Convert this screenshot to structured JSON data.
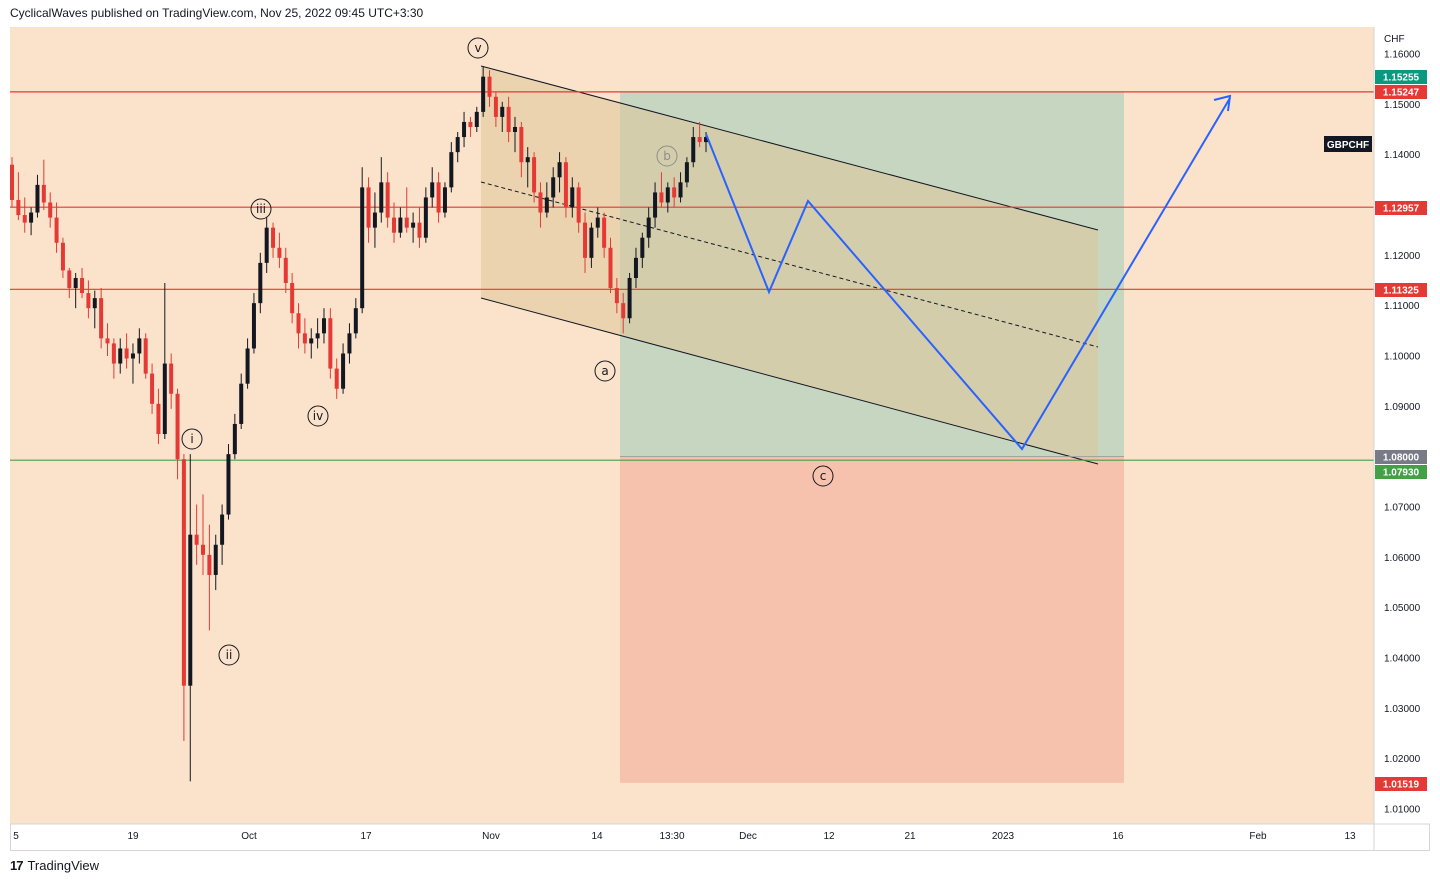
{
  "header": {
    "attribution": "CyclicalWaves published on TradingView.com, Nov 25, 2022 09:45 UTC+3:30"
  },
  "footer": {
    "logo_mark": "17",
    "brand": "TradingView"
  },
  "colors": {
    "background": "#fbe3cb",
    "resistance_line": "#e53935",
    "target_line": "#43a047",
    "projection": "#2962ff",
    "profit_zone": "#c6d6c1",
    "loss_zone": "#f7c2ad",
    "channel_fill": "#e0c79a"
  },
  "chart_data": {
    "type": "candlestick",
    "symbol": "GBPCHF",
    "currency": "CHF",
    "ylim": [
      1.005,
      1.1655
    ],
    "y_ticks": [
      "1.16000",
      "1.15000",
      "1.14000",
      "1.13000",
      "1.12000",
      "1.11000",
      "1.10000",
      "1.09000",
      "1.08000",
      "1.07000",
      "1.06000",
      "1.05000",
      "1.04000",
      "1.03000",
      "1.02000",
      "1.01000"
    ],
    "x_ticks": [
      "5",
      "19",
      "Oct",
      "17",
      "Nov",
      "14",
      "13:30",
      "Dec",
      "12",
      "21",
      "2023",
      "16",
      "Feb",
      "13"
    ],
    "price_labels": [
      {
        "value": "1.15255",
        "color": "#089981"
      },
      {
        "value": "1.15247",
        "color": "#e53935"
      },
      {
        "value": "1.12957",
        "color": "#e53935"
      },
      {
        "value": "1.11325",
        "color": "#e53935"
      },
      {
        "value": "1.08000",
        "color": "#787b86"
      },
      {
        "value": "1.07930",
        "color": "#43a047"
      },
      {
        "value": "1.01519",
        "color": "#e53935"
      }
    ],
    "horizontal_lines": [
      {
        "price": 1.15247,
        "color": "#e53935"
      },
      {
        "price": 1.12957,
        "color": "#e53935"
      },
      {
        "price": 1.11325,
        "color": "#e53935"
      },
      {
        "price": 1.0793,
        "color": "#43a047"
      }
    ],
    "wave_labels": [
      "i",
      "ii",
      "iii",
      "iv",
      "v",
      "a",
      "b",
      "c"
    ],
    "position": {
      "entry": 1.08,
      "target": 1.15247,
      "stop": 1.01519
    },
    "candles": [
      [
        1.138,
        1.1395,
        1.1295,
        1.131
      ],
      [
        1.131,
        1.1365,
        1.127,
        1.128
      ],
      [
        1.128,
        1.1315,
        1.1245,
        1.1265
      ],
      [
        1.1265,
        1.1295,
        1.124,
        1.1285
      ],
      [
        1.1285,
        1.136,
        1.1275,
        1.134
      ],
      [
        1.134,
        1.139,
        1.129,
        1.1305
      ],
      [
        1.1305,
        1.1325,
        1.1255,
        1.1275
      ],
      [
        1.1275,
        1.1305,
        1.1205,
        1.1225
      ],
      [
        1.1225,
        1.1235,
        1.1155,
        1.117
      ],
      [
        1.117,
        1.1175,
        1.1115,
        1.1135
      ],
      [
        1.1135,
        1.1165,
        1.1095,
        1.1155
      ],
      [
        1.1155,
        1.1175,
        1.1115,
        1.1125
      ],
      [
        1.1125,
        1.115,
        1.1075,
        1.1095
      ],
      [
        1.1095,
        1.113,
        1.1055,
        1.1115
      ],
      [
        1.1115,
        1.1135,
        1.1015,
        1.1035
      ],
      [
        1.1035,
        1.1065,
        1.1,
        1.1025
      ],
      [
        1.1025,
        1.1035,
        1.0955,
        1.0985
      ],
      [
        1.0985,
        1.1035,
        1.0965,
        1.1015
      ],
      [
        1.1015,
        1.1045,
        1.0975,
        1.0995
      ],
      [
        1.0995,
        1.1025,
        1.0945,
        1.1005
      ],
      [
        1.1005,
        1.1055,
        1.0985,
        1.1035
      ],
      [
        1.1035,
        1.1045,
        1.0955,
        1.0965
      ],
      [
        1.0965,
        1.0985,
        1.0885,
        1.0905
      ],
      [
        1.0905,
        1.0935,
        1.0825,
        1.0845
      ],
      [
        1.0845,
        1.1145,
        1.0835,
        1.0985
      ],
      [
        1.0985,
        1.1005,
        1.0895,
        1.0925
      ],
      [
        1.0925,
        1.0935,
        1.0755,
        1.0795
      ],
      [
        1.0795,
        1.0805,
        1.0235,
        1.0345
      ],
      [
        1.0345,
        1.0805,
        1.0155,
        1.0645
      ],
      [
        1.0645,
        1.0705,
        1.0585,
        1.0625
      ],
      [
        1.0625,
        1.0725,
        1.0565,
        1.0605
      ],
      [
        1.0605,
        1.0665,
        1.0455,
        1.0565
      ],
      [
        1.0565,
        1.0645,
        1.0535,
        1.0625
      ],
      [
        1.0625,
        1.0705,
        1.0585,
        1.0685
      ],
      [
        1.0685,
        1.0825,
        1.0675,
        1.0805
      ],
      [
        1.0805,
        1.0885,
        1.0795,
        1.0865
      ],
      [
        1.0865,
        1.0965,
        1.0855,
        1.0945
      ],
      [
        1.0945,
        1.1035,
        1.0935,
        1.1015
      ],
      [
        1.1015,
        1.1125,
        1.1005,
        1.1105
      ],
      [
        1.1105,
        1.1205,
        1.1085,
        1.1185
      ],
      [
        1.1185,
        1.1275,
        1.1165,
        1.1255
      ],
      [
        1.1255,
        1.1265,
        1.1195,
        1.1215
      ],
      [
        1.1215,
        1.1245,
        1.1175,
        1.1195
      ],
      [
        1.1195,
        1.1215,
        1.1125,
        1.1145
      ],
      [
        1.1145,
        1.1165,
        1.1065,
        1.1085
      ],
      [
        1.1085,
        1.1105,
        1.1015,
        1.1045
      ],
      [
        1.1045,
        1.1075,
        1.1005,
        1.1025
      ],
      [
        1.1025,
        1.1055,
        1.0995,
        1.1035
      ],
      [
        1.1035,
        1.1075,
        1.1015,
        1.1045
      ],
      [
        1.1045,
        1.1095,
        1.1025,
        1.1075
      ],
      [
        1.1075,
        1.1095,
        1.0955,
        1.0975
      ],
      [
        1.0975,
        1.0995,
        1.0915,
        1.0935
      ],
      [
        1.0935,
        1.1025,
        1.0925,
        1.1005
      ],
      [
        1.1005,
        1.1065,
        1.0985,
        1.1045
      ],
      [
        1.1045,
        1.1115,
        1.1035,
        1.1095
      ],
      [
        1.1095,
        1.1375,
        1.1085,
        1.1335
      ],
      [
        1.1335,
        1.1355,
        1.1225,
        1.1255
      ],
      [
        1.1255,
        1.1325,
        1.1215,
        1.1285
      ],
      [
        1.1285,
        1.1395,
        1.1265,
        1.1345
      ],
      [
        1.1345,
        1.1365,
        1.1255,
        1.1275
      ],
      [
        1.1275,
        1.1305,
        1.1225,
        1.1245
      ],
      [
        1.1245,
        1.1295,
        1.1235,
        1.1275
      ],
      [
        1.1275,
        1.1335,
        1.1245,
        1.1255
      ],
      [
        1.1255,
        1.1285,
        1.1225,
        1.1265
      ],
      [
        1.1265,
        1.1295,
        1.1215,
        1.1235
      ],
      [
        1.1235,
        1.1335,
        1.1225,
        1.1315
      ],
      [
        1.1315,
        1.1375,
        1.1295,
        1.1345
      ],
      [
        1.1345,
        1.1365,
        1.1265,
        1.1285
      ],
      [
        1.1285,
        1.1345,
        1.1275,
        1.1335
      ],
      [
        1.1335,
        1.1425,
        1.1325,
        1.1405
      ],
      [
        1.1405,
        1.1445,
        1.1385,
        1.1435
      ],
      [
        1.1435,
        1.1485,
        1.1415,
        1.1465
      ],
      [
        1.1465,
        1.1475,
        1.1435,
        1.1455
      ],
      [
        1.1455,
        1.1495,
        1.1445,
        1.1485
      ],
      [
        1.1485,
        1.1575,
        1.1475,
        1.1555
      ],
      [
        1.1555,
        1.1568,
        1.1495,
        1.1515
      ],
      [
        1.1515,
        1.1525,
        1.1455,
        1.1475
      ],
      [
        1.1475,
        1.1505,
        1.1445,
        1.1495
      ],
      [
        1.1495,
        1.1515,
        1.1425,
        1.1445
      ],
      [
        1.1445,
        1.1475,
        1.1405,
        1.1455
      ],
      [
        1.1455,
        1.1465,
        1.1355,
        1.1385
      ],
      [
        1.1385,
        1.1415,
        1.1335,
        1.1395
      ],
      [
        1.1395,
        1.1405,
        1.1305,
        1.1325
      ],
      [
        1.1325,
        1.1345,
        1.1255,
        1.1285
      ],
      [
        1.1285,
        1.1345,
        1.1275,
        1.1315
      ],
      [
        1.1315,
        1.1375,
        1.1295,
        1.1355
      ],
      [
        1.1355,
        1.1405,
        1.1325,
        1.1385
      ],
      [
        1.1385,
        1.1395,
        1.1275,
        1.1295
      ],
      [
        1.1295,
        1.1355,
        1.1275,
        1.1335
      ],
      [
        1.1335,
        1.1345,
        1.1245,
        1.1265
      ],
      [
        1.1265,
        1.1285,
        1.1165,
        1.1195
      ],
      [
        1.1195,
        1.1265,
        1.1175,
        1.1255
      ],
      [
        1.1255,
        1.1295,
        1.1235,
        1.1275
      ],
      [
        1.1275,
        1.1285,
        1.1195,
        1.1215
      ],
      [
        1.1215,
        1.1235,
        1.1125,
        1.1135
      ],
      [
        1.1135,
        1.1155,
        1.1085,
        1.1105
      ],
      [
        1.1105,
        1.1125,
        1.1045,
        1.1075
      ],
      [
        1.1075,
        1.1165,
        1.1065,
        1.1155
      ],
      [
        1.1155,
        1.1215,
        1.1135,
        1.1195
      ],
      [
        1.1195,
        1.1245,
        1.1175,
        1.1235
      ],
      [
        1.1235,
        1.1295,
        1.1215,
        1.1275
      ],
      [
        1.1275,
        1.1345,
        1.1255,
        1.1325
      ],
      [
        1.1325,
        1.1365,
        1.1295,
        1.1305
      ],
      [
        1.1305,
        1.1345,
        1.1285,
        1.1335
      ],
      [
        1.1335,
        1.1355,
        1.1295,
        1.1315
      ],
      [
        1.1315,
        1.1365,
        1.1305,
        1.1345
      ],
      [
        1.1345,
        1.1395,
        1.1335,
        1.1385
      ],
      [
        1.1385,
        1.1455,
        1.1375,
        1.1435
      ],
      [
        1.1435,
        1.1465,
        1.1415,
        1.1425
      ],
      [
        1.1425,
        1.1445,
        1.1405,
        1.1435
      ]
    ]
  }
}
